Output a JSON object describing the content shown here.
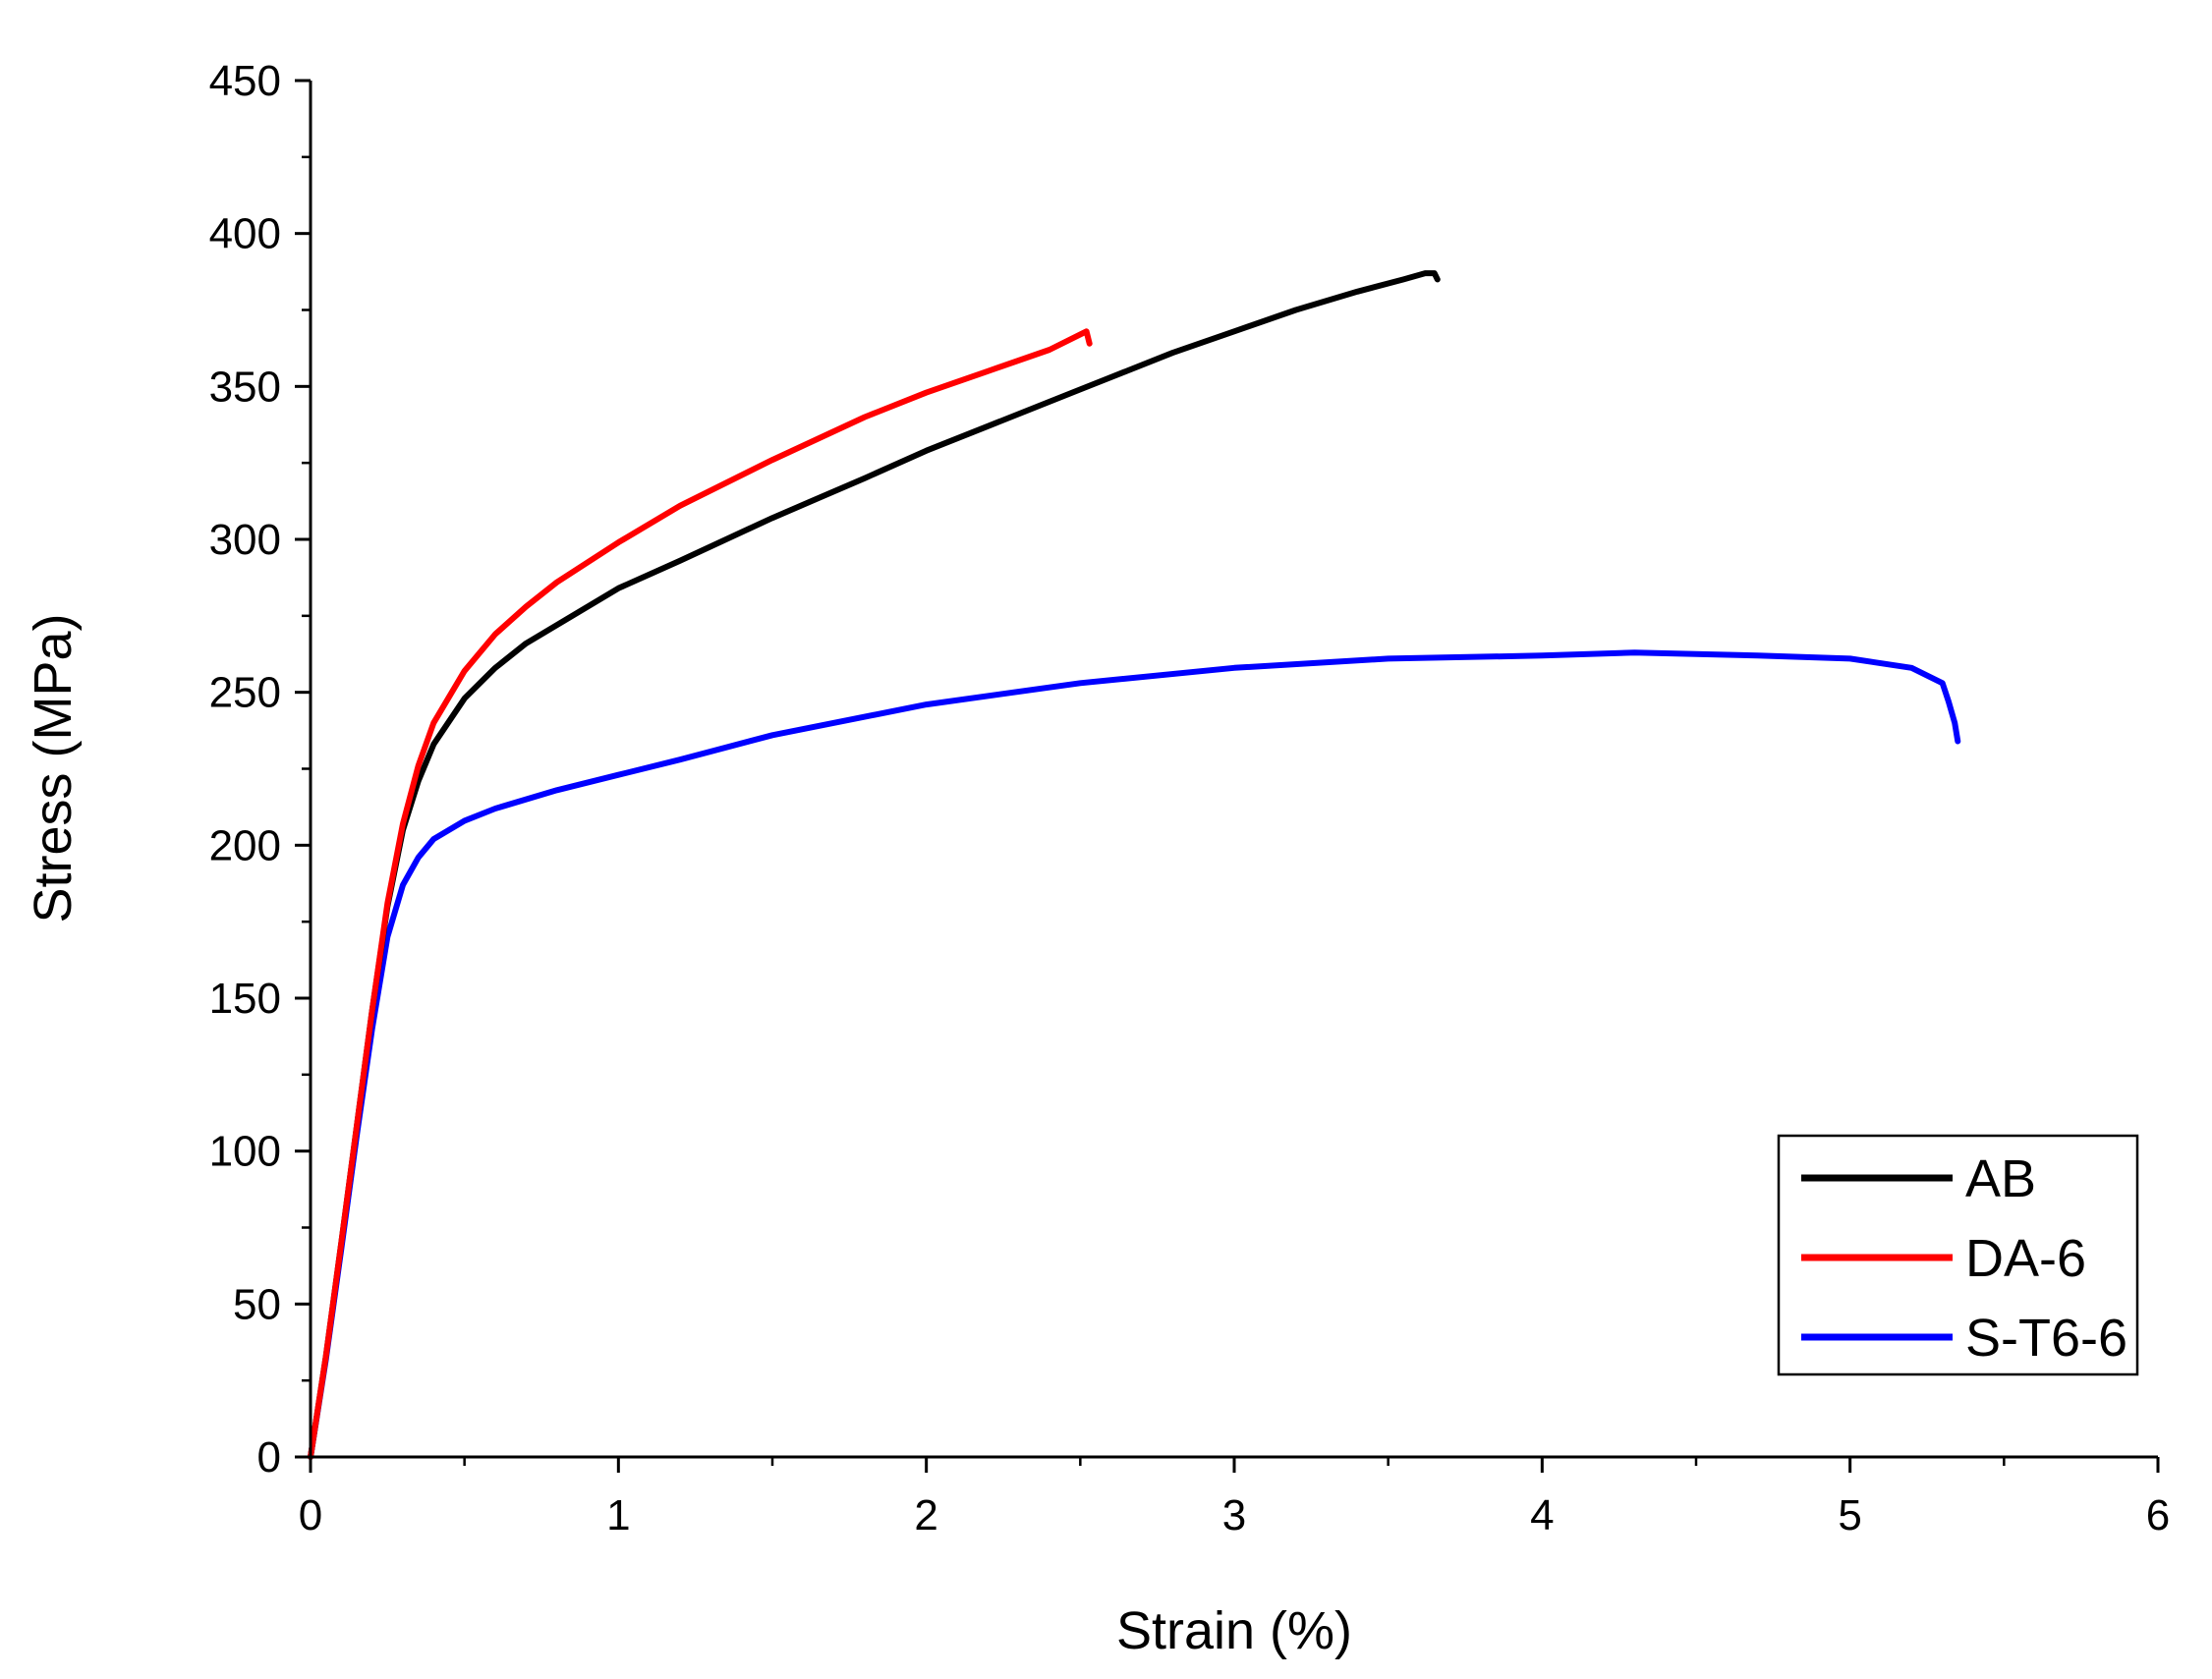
{
  "chart_data": {
    "type": "line",
    "title": "",
    "xlabel": "Strain (%)",
    "ylabel": "Stress (MPa)",
    "xlim": [
      0,
      6
    ],
    "ylim": [
      0,
      450
    ],
    "x_ticks": [
      0,
      1,
      2,
      3,
      4,
      5,
      6
    ],
    "y_ticks": [
      0,
      50,
      100,
      150,
      200,
      250,
      300,
      350,
      400,
      450
    ],
    "grid": false,
    "legend_position": "bottom-right",
    "series": [
      {
        "name": "AB",
        "color": "#000000",
        "x": [
          0,
          0.05,
          0.1,
          0.15,
          0.2,
          0.25,
          0.3,
          0.35,
          0.4,
          0.5,
          0.6,
          0.7,
          0.8,
          1.0,
          1.2,
          1.5,
          1.8,
          2.0,
          2.2,
          2.5,
          2.8,
          3.0,
          3.2,
          3.4,
          3.55,
          3.62,
          3.65,
          3.66
        ],
        "y": [
          0,
          33,
          70,
          108,
          146,
          180,
          205,
          221,
          233,
          248,
          258,
          266,
          272,
          284,
          293,
          307,
          320,
          329,
          337,
          349,
          361,
          368,
          375,
          381,
          385,
          387,
          387,
          385
        ]
      },
      {
        "name": "DA-6",
        "color": "#ff0000",
        "x": [
          0,
          0.05,
          0.1,
          0.15,
          0.2,
          0.25,
          0.3,
          0.35,
          0.4,
          0.5,
          0.6,
          0.7,
          0.8,
          1.0,
          1.2,
          1.5,
          1.8,
          2.0,
          2.2,
          2.4,
          2.5,
          2.52,
          2.53
        ],
        "y": [
          0,
          33,
          70,
          108,
          146,
          181,
          207,
          226,
          240,
          257,
          269,
          278,
          286,
          299,
          311,
          326,
          340,
          348,
          355,
          362,
          367,
          368,
          364
        ]
      },
      {
        "name": "S-T6-6",
        "color": "#0000ff",
        "x": [
          0,
          0.05,
          0.1,
          0.15,
          0.2,
          0.25,
          0.3,
          0.35,
          0.4,
          0.5,
          0.6,
          0.8,
          1.0,
          1.2,
          1.5,
          2.0,
          2.5,
          3.0,
          3.5,
          4.0,
          4.3,
          4.7,
          5.0,
          5.2,
          5.3,
          5.32,
          5.34,
          5.35
        ],
        "y": [
          0,
          32,
          68,
          105,
          140,
          170,
          187,
          196,
          202,
          208,
          212,
          218,
          223,
          228,
          236,
          246,
          253,
          258,
          261,
          262,
          263,
          262,
          261,
          258,
          253,
          247,
          240,
          234
        ]
      }
    ]
  }
}
